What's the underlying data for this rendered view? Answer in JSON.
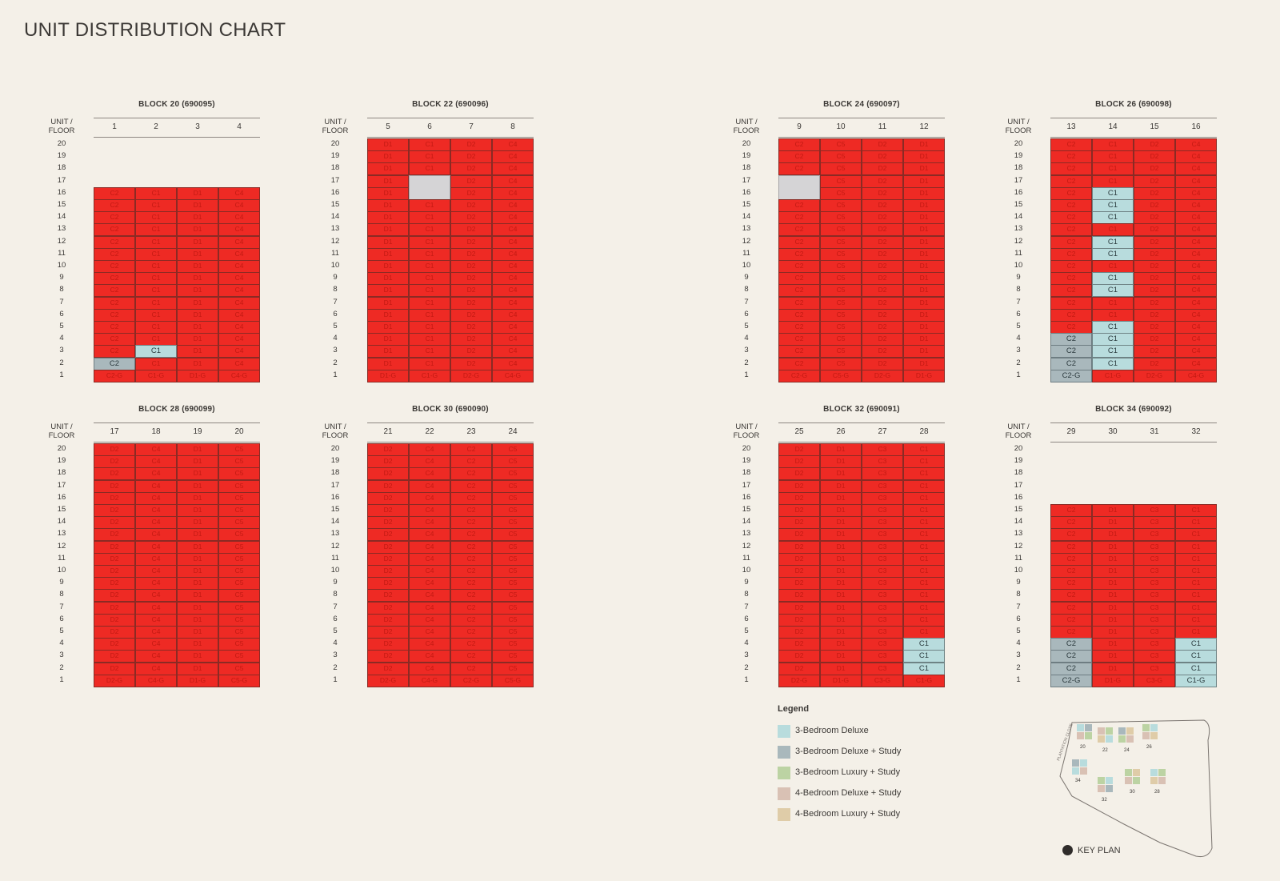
{
  "page": {
    "title": "UNIT DISTRIBUTION CHART"
  },
  "header_label_unit": "UNIT /",
  "header_label_floor": "FLOOR",
  "colors": {
    "sold_red": "#ee2a24",
    "c1_deluxe": "#b8dcdd",
    "c2_deluxe_study": "#a9b8bc",
    "not_available": "#d5d4d6"
  },
  "blocks": [
    {
      "name": "BLOCK 20 (690095)",
      "columns": [
        "1",
        "2",
        "3",
        "4"
      ],
      "floors": [
        "20",
        "19",
        "18",
        "17",
        "16",
        "15",
        "14",
        "13",
        "12",
        "11",
        "10",
        "9",
        "8",
        "7",
        "6",
        "5",
        "4",
        "3",
        "2",
        "1"
      ],
      "cells": [
        [
          null,
          null,
          null,
          null
        ],
        [
          null,
          null,
          null,
          null
        ],
        [
          null,
          null,
          null,
          null
        ],
        [
          null,
          null,
          null,
          null
        ],
        [
          "C2",
          "C1",
          "D1",
          "C4"
        ],
        [
          "C2",
          "C1",
          "D1",
          "C4"
        ],
        [
          "C2",
          "C1",
          "D1",
          "C4"
        ],
        [
          "C2",
          "C1",
          "D1",
          "C4"
        ],
        [
          "C2",
          "C1",
          "D1",
          "C4"
        ],
        [
          "C2",
          "C1",
          "D1",
          "C4"
        ],
        [
          "C2",
          "C1",
          "D1",
          "C4"
        ],
        [
          "C2",
          "C1",
          "D1",
          "C4"
        ],
        [
          "C2",
          "C1",
          "D1",
          "C4"
        ],
        [
          "C2",
          "C1",
          "D1",
          "C4"
        ],
        [
          "C2",
          "C1",
          "D1",
          "C4"
        ],
        [
          "C2",
          "C1",
          "D1",
          "C4"
        ],
        [
          "C2",
          "C1",
          "D1",
          "C4"
        ],
        [
          "C2",
          "C1*",
          "D1",
          "C4"
        ],
        [
          "C2*",
          "C1",
          "D1",
          "C4"
        ],
        [
          "C2-G",
          "C1-G",
          "D1-G",
          "C4-G"
        ]
      ]
    },
    {
      "name": "BLOCK 22 (690096)",
      "columns": [
        "5",
        "6",
        "7",
        "8"
      ],
      "floors": [
        "20",
        "19",
        "18",
        "17",
        "16",
        "15",
        "14",
        "13",
        "12",
        "11",
        "10",
        "9",
        "8",
        "7",
        "6",
        "5",
        "4",
        "3",
        "2",
        "1"
      ],
      "cells": [
        [
          "D1",
          "C1",
          "D2",
          "C4"
        ],
        [
          "D1",
          "C1",
          "D2",
          "C4"
        ],
        [
          "D1",
          "C1",
          "D2",
          "C4"
        ],
        [
          "D1",
          "#",
          "D2",
          "C4"
        ],
        [
          "D1",
          "#",
          "D2",
          "C4"
        ],
        [
          "D1",
          "C1",
          "D2",
          "C4"
        ],
        [
          "D1",
          "C1",
          "D2",
          "C4"
        ],
        [
          "D1",
          "C1",
          "D2",
          "C4"
        ],
        [
          "D1",
          "C1",
          "D2",
          "C4"
        ],
        [
          "D1",
          "C1",
          "D2",
          "C4"
        ],
        [
          "D1",
          "C1",
          "D2",
          "C4"
        ],
        [
          "D1",
          "C1",
          "D2",
          "C4"
        ],
        [
          "D1",
          "C1",
          "D2",
          "C4"
        ],
        [
          "D1",
          "C1",
          "D2",
          "C4"
        ],
        [
          "D1",
          "C1",
          "D2",
          "C4"
        ],
        [
          "D1",
          "C1",
          "D2",
          "C4"
        ],
        [
          "D1",
          "C1",
          "D2",
          "C4"
        ],
        [
          "D1",
          "C1",
          "D2",
          "C4"
        ],
        [
          "D1",
          "C1",
          "D2",
          "C4"
        ],
        [
          "D1-G",
          "C1-G",
          "D2-G",
          "C4-G"
        ]
      ]
    },
    {
      "name": "BLOCK 24 (690097)",
      "columns": [
        "9",
        "10",
        "11",
        "12"
      ],
      "floors": [
        "20",
        "19",
        "18",
        "17",
        "16",
        "15",
        "14",
        "13",
        "12",
        "11",
        "10",
        "9",
        "8",
        "7",
        "6",
        "5",
        "4",
        "3",
        "2",
        "1"
      ],
      "cells": [
        [
          "C2",
          "C5",
          "D2",
          "D1"
        ],
        [
          "C2",
          "C5",
          "D2",
          "D1"
        ],
        [
          "C2",
          "C5",
          "D2",
          "D1"
        ],
        [
          "#",
          "C5",
          "D2",
          "D1"
        ],
        [
          "#",
          "C5",
          "D2",
          "D1"
        ],
        [
          "C2",
          "C5",
          "D2",
          "D1"
        ],
        [
          "C2",
          "C5",
          "D2",
          "D1"
        ],
        [
          "C2",
          "C5",
          "D2",
          "D1"
        ],
        [
          "C2",
          "C5",
          "D2",
          "D1"
        ],
        [
          "C2",
          "C5",
          "D2",
          "D1"
        ],
        [
          "C2",
          "C5",
          "D2",
          "D1"
        ],
        [
          "C2",
          "C5",
          "D2",
          "D1"
        ],
        [
          "C2",
          "C5",
          "D2",
          "D1"
        ],
        [
          "C2",
          "C5",
          "D2",
          "D1"
        ],
        [
          "C2",
          "C5",
          "D2",
          "D1"
        ],
        [
          "C2",
          "C5",
          "D2",
          "D1"
        ],
        [
          "C2",
          "C5",
          "D2",
          "D1"
        ],
        [
          "C2",
          "C5",
          "D2",
          "D1"
        ],
        [
          "C2",
          "C5",
          "D2",
          "D1"
        ],
        [
          "C2-G",
          "C5-G",
          "D2-G",
          "D1-G"
        ]
      ]
    },
    {
      "name": "BLOCK 26 (690098)",
      "columns": [
        "13",
        "14",
        "15",
        "16"
      ],
      "floors": [
        "20",
        "19",
        "18",
        "17",
        "16",
        "15",
        "14",
        "13",
        "12",
        "11",
        "10",
        "9",
        "8",
        "7",
        "6",
        "5",
        "4",
        "3",
        "2",
        "1"
      ],
      "cells": [
        [
          "C2",
          "C1",
          "D2",
          "C4"
        ],
        [
          "C2",
          "C1",
          "D2",
          "C4"
        ],
        [
          "C2",
          "C1",
          "D2",
          "C4"
        ],
        [
          "C2",
          "C1",
          "D2",
          "C4"
        ],
        [
          "C2",
          "C1*",
          "D2",
          "C4"
        ],
        [
          "C2",
          "C1*",
          "D2",
          "C4"
        ],
        [
          "C2",
          "C1*",
          "D2",
          "C4"
        ],
        [
          "C2",
          "C1",
          "D2",
          "C4"
        ],
        [
          "C2",
          "C1*",
          "D2",
          "C4"
        ],
        [
          "C2",
          "C1*",
          "D2",
          "C4"
        ],
        [
          "C2",
          "C1",
          "D2",
          "C4"
        ],
        [
          "C2",
          "C1*",
          "D2",
          "C4"
        ],
        [
          "C2",
          "C1*",
          "D2",
          "C4"
        ],
        [
          "C2",
          "C1",
          "D2",
          "C4"
        ],
        [
          "C2",
          "C1",
          "D2",
          "C4"
        ],
        [
          "C2",
          "C1*",
          "D2",
          "C4"
        ],
        [
          "C2*",
          "C1*",
          "D2",
          "C4"
        ],
        [
          "C2*",
          "C1*",
          "D2",
          "C4"
        ],
        [
          "C2*",
          "C1*",
          "D2",
          "C4"
        ],
        [
          "C2-G*",
          "C1-G",
          "D2-G",
          "C4-G"
        ]
      ]
    },
    {
      "name": "BLOCK 28 (690099)",
      "columns": [
        "17",
        "18",
        "19",
        "20"
      ],
      "floors": [
        "20",
        "19",
        "18",
        "17",
        "16",
        "15",
        "14",
        "13",
        "12",
        "11",
        "10",
        "9",
        "8",
        "7",
        "6",
        "5",
        "4",
        "3",
        "2",
        "1"
      ],
      "cells": [
        [
          "D2",
          "C4",
          "D1",
          "C5"
        ],
        [
          "D2",
          "C4",
          "D1",
          "C5"
        ],
        [
          "D2",
          "C4",
          "D1",
          "C5"
        ],
        [
          "D2",
          "C4",
          "D1",
          "C5"
        ],
        [
          "D2",
          "C4",
          "D1",
          "C5"
        ],
        [
          "D2",
          "C4",
          "D1",
          "C5"
        ],
        [
          "D2",
          "C4",
          "D1",
          "C5"
        ],
        [
          "D2",
          "C4",
          "D1",
          "C5"
        ],
        [
          "D2",
          "C4",
          "D1",
          "C5"
        ],
        [
          "D2",
          "C4",
          "D1",
          "C5"
        ],
        [
          "D2",
          "C4",
          "D1",
          "C5"
        ],
        [
          "D2",
          "C4",
          "D1",
          "C5"
        ],
        [
          "D2",
          "C4",
          "D1",
          "C5"
        ],
        [
          "D2",
          "C4",
          "D1",
          "C5"
        ],
        [
          "D2",
          "C4",
          "D1",
          "C5"
        ],
        [
          "D2",
          "C4",
          "D1",
          "C5"
        ],
        [
          "D2",
          "C4",
          "D1",
          "C5"
        ],
        [
          "D2",
          "C4",
          "D1",
          "C5"
        ],
        [
          "D2",
          "C4",
          "D1",
          "C5"
        ],
        [
          "D2-G",
          "C4-G",
          "D1-G",
          "C5-G"
        ]
      ]
    },
    {
      "name": "BLOCK 30 (690090)",
      "columns": [
        "21",
        "22",
        "23",
        "24"
      ],
      "floors": [
        "20",
        "19",
        "18",
        "17",
        "16",
        "15",
        "14",
        "13",
        "12",
        "11",
        "10",
        "9",
        "8",
        "7",
        "6",
        "5",
        "4",
        "3",
        "2",
        "1"
      ],
      "cells": [
        [
          "D2",
          "C4",
          "C2",
          "C5"
        ],
        [
          "D2",
          "C4",
          "C2",
          "C5"
        ],
        [
          "D2",
          "C4",
          "C2",
          "C5"
        ],
        [
          "D2",
          "C4",
          "C2",
          "C5"
        ],
        [
          "D2",
          "C4",
          "C2",
          "C5"
        ],
        [
          "D2",
          "C4",
          "C2",
          "C5"
        ],
        [
          "D2",
          "C4",
          "C2",
          "C5"
        ],
        [
          "D2",
          "C4",
          "C2",
          "C5"
        ],
        [
          "D2",
          "C4",
          "C2",
          "C5"
        ],
        [
          "D2",
          "C4",
          "C2",
          "C5"
        ],
        [
          "D2",
          "C4",
          "C2",
          "C5"
        ],
        [
          "D2",
          "C4",
          "C2",
          "C5"
        ],
        [
          "D2",
          "C4",
          "C2",
          "C5"
        ],
        [
          "D2",
          "C4",
          "C2",
          "C5"
        ],
        [
          "D2",
          "C4",
          "C2",
          "C5"
        ],
        [
          "D2",
          "C4",
          "C2",
          "C5"
        ],
        [
          "D2",
          "C4",
          "C2",
          "C5"
        ],
        [
          "D2",
          "C4",
          "C2",
          "C5"
        ],
        [
          "D2",
          "C4",
          "C2",
          "C5"
        ],
        [
          "D2-G",
          "C4-G",
          "C2-G",
          "C5-G"
        ]
      ]
    },
    {
      "name": "BLOCK 32 (690091)",
      "columns": [
        "25",
        "26",
        "27",
        "28"
      ],
      "floors": [
        "20",
        "19",
        "18",
        "17",
        "16",
        "15",
        "14",
        "13",
        "12",
        "11",
        "10",
        "9",
        "8",
        "7",
        "6",
        "5",
        "4",
        "3",
        "2",
        "1"
      ],
      "cells": [
        [
          "D2",
          "D1",
          "C3",
          "C1"
        ],
        [
          "D2",
          "D1",
          "C3",
          "C1"
        ],
        [
          "D2",
          "D1",
          "C3",
          "C1"
        ],
        [
          "D2",
          "D1",
          "C3",
          "C1"
        ],
        [
          "D2",
          "D1",
          "C3",
          "C1"
        ],
        [
          "D2",
          "D1",
          "C3",
          "C1"
        ],
        [
          "D2",
          "D1",
          "C3",
          "C1"
        ],
        [
          "D2",
          "D1",
          "C3",
          "C1"
        ],
        [
          "D2",
          "D1",
          "C3",
          "C1"
        ],
        [
          "D2",
          "D1",
          "C3",
          "C1"
        ],
        [
          "D2",
          "D1",
          "C3",
          "C1"
        ],
        [
          "D2",
          "D1",
          "C3",
          "C1"
        ],
        [
          "D2",
          "D1",
          "C3",
          "C1"
        ],
        [
          "D2",
          "D1",
          "C3",
          "C1"
        ],
        [
          "D2",
          "D1",
          "C3",
          "C1"
        ],
        [
          "D2",
          "D1",
          "C3",
          "C1"
        ],
        [
          "D2",
          "D1",
          "C3",
          "C1*"
        ],
        [
          "D2",
          "D1",
          "C3",
          "C1*"
        ],
        [
          "D2",
          "D1",
          "C3",
          "C1*"
        ],
        [
          "D2-G",
          "D1-G",
          "C3-G",
          "C1-G"
        ]
      ]
    },
    {
      "name": "BLOCK 34 (690092)",
      "columns": [
        "29",
        "30",
        "31",
        "32"
      ],
      "floors": [
        "20",
        "19",
        "18",
        "17",
        "16",
        "15",
        "14",
        "13",
        "12",
        "11",
        "10",
        "9",
        "8",
        "7",
        "6",
        "5",
        "4",
        "3",
        "2",
        "1"
      ],
      "cells": [
        [
          null,
          null,
          null,
          null
        ],
        [
          null,
          null,
          null,
          null
        ],
        [
          null,
          null,
          null,
          null
        ],
        [
          null,
          null,
          null,
          null
        ],
        [
          null,
          null,
          null,
          null
        ],
        [
          "C2",
          "D1",
          "C3",
          "C1"
        ],
        [
          "C2",
          "D1",
          "C3",
          "C1"
        ],
        [
          "C2",
          "D1",
          "C3",
          "C1"
        ],
        [
          "C2",
          "D1",
          "C3",
          "C1"
        ],
        [
          "C2",
          "D1",
          "C3",
          "C1"
        ],
        [
          "C2",
          "D1",
          "C3",
          "C1"
        ],
        [
          "C2",
          "D1",
          "C3",
          "C1"
        ],
        [
          "C2",
          "D1",
          "C3",
          "C1"
        ],
        [
          "C2",
          "D1",
          "C3",
          "C1"
        ],
        [
          "C2",
          "D1",
          "C3",
          "C1"
        ],
        [
          "C2",
          "D1",
          "C3",
          "C1"
        ],
        [
          "C2*",
          "D1",
          "C3",
          "C1*"
        ],
        [
          "C2*",
          "D1",
          "C3",
          "C1*"
        ],
        [
          "C2*",
          "D1",
          "C3",
          "C1*"
        ],
        [
          "C2-G*",
          "D1-G",
          "C3-G",
          "C1-G*"
        ]
      ]
    }
  ],
  "legend": {
    "title": "Legend",
    "items": [
      {
        "label": "3-Bedroom Deluxe",
        "color": "#b8dcdd"
      },
      {
        "label": "3-Bedroom Deluxe + Study",
        "color": "#a9b8bc"
      },
      {
        "label": "3-Bedroom Luxury + Study",
        "color": "#bcd3a3"
      },
      {
        "label": "4-Bedroom Deluxe + Study",
        "color": "#d9c1b4"
      },
      {
        "label": "4-Bedroom Luxury + Study",
        "color": "#dfcca8"
      }
    ]
  },
  "key_plan": {
    "label": "KEY PLAN",
    "road_label": "PLANTATION CLOSE",
    "block_numbers": [
      "20",
      "22",
      "24",
      "26",
      "34",
      "32",
      "30",
      "28"
    ]
  }
}
